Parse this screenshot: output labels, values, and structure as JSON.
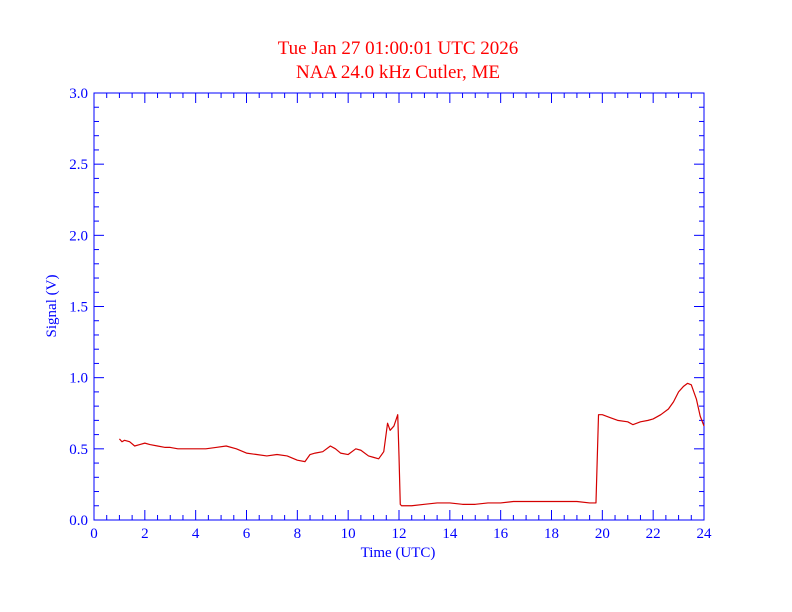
{
  "chart_data": {
    "type": "line",
    "title": "Tue Jan 27 01:00:01 UTC 2026",
    "subtitle": "NAA 24.0 kHz Cutler, ME",
    "xlabel": "Time (UTC)",
    "ylabel": "Signal (V)",
    "xlim": [
      0,
      24
    ],
    "ylim": [
      0,
      3.0
    ],
    "xticks": [
      0,
      2,
      4,
      6,
      8,
      10,
      12,
      14,
      16,
      18,
      20,
      22,
      24
    ],
    "xtick_labels": [
      "0",
      "2",
      "4",
      "6",
      "8",
      "10",
      "12",
      "14",
      "16",
      "18",
      "20",
      "22",
      "24"
    ],
    "yticks": [
      0,
      0.5,
      1.0,
      1.5,
      2.0,
      2.5,
      3.0
    ],
    "ytick_labels": [
      "0.0",
      "0.5",
      "1.0",
      "1.5",
      "2.0",
      "2.5",
      "3.0"
    ],
    "grid": false,
    "colors": {
      "line": "#d40000",
      "axis": "#0000ff",
      "title": "#ff0000"
    },
    "series": [
      {
        "x": [
          1.0,
          1.1,
          1.2,
          1.4,
          1.6,
          1.8,
          2.0,
          2.2,
          2.5,
          2.8,
          3.0,
          3.3,
          3.6,
          4.0,
          4.4,
          4.8,
          5.2,
          5.6,
          6.0,
          6.4,
          6.8,
          7.2,
          7.6,
          8.0,
          8.3,
          8.5,
          8.7,
          9.0,
          9.3,
          9.5,
          9.7,
          10.0,
          10.3,
          10.5,
          10.8,
          11.0,
          11.2,
          11.4,
          11.55,
          11.65,
          11.8,
          11.95,
          12.0,
          12.05,
          12.1,
          12.5,
          13.0,
          13.5,
          14.0,
          14.5,
          15.0,
          15.5,
          16.0,
          16.5,
          17.0,
          17.5,
          18.0,
          18.5,
          19.0,
          19.5,
          19.75,
          19.85,
          20.0,
          20.3,
          20.6,
          21.0,
          21.2,
          21.5,
          21.8,
          22.0,
          22.3,
          22.6,
          22.8,
          23.0,
          23.2,
          23.35,
          23.5,
          23.7,
          23.85,
          24.0
        ],
        "y": [
          0.57,
          0.55,
          0.56,
          0.55,
          0.52,
          0.53,
          0.54,
          0.53,
          0.52,
          0.51,
          0.51,
          0.5,
          0.5,
          0.5,
          0.5,
          0.51,
          0.52,
          0.5,
          0.47,
          0.46,
          0.45,
          0.46,
          0.45,
          0.42,
          0.41,
          0.46,
          0.47,
          0.48,
          0.52,
          0.5,
          0.47,
          0.46,
          0.5,
          0.49,
          0.45,
          0.44,
          0.43,
          0.48,
          0.68,
          0.63,
          0.66,
          0.74,
          0.45,
          0.11,
          0.1,
          0.1,
          0.11,
          0.12,
          0.12,
          0.11,
          0.11,
          0.12,
          0.12,
          0.13,
          0.13,
          0.13,
          0.13,
          0.13,
          0.13,
          0.12,
          0.12,
          0.74,
          0.74,
          0.72,
          0.7,
          0.69,
          0.67,
          0.69,
          0.7,
          0.71,
          0.74,
          0.78,
          0.83,
          0.9,
          0.94,
          0.96,
          0.95,
          0.85,
          0.73,
          0.66
        ]
      }
    ]
  }
}
